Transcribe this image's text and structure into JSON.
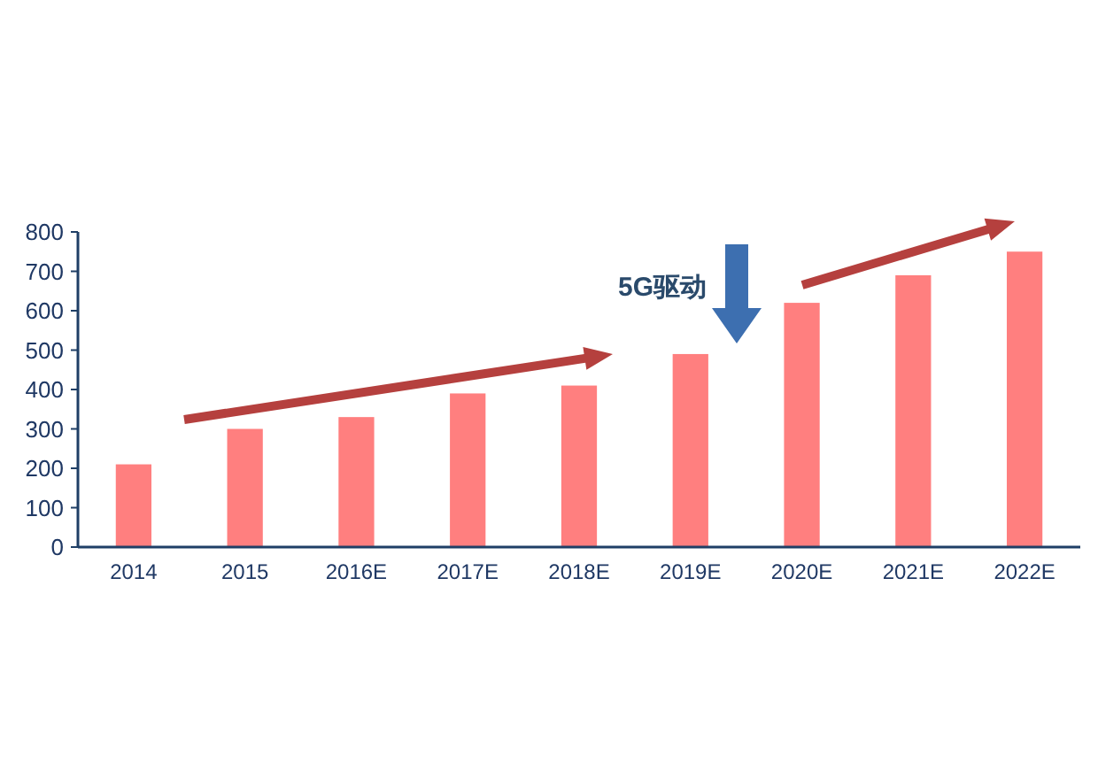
{
  "chart_data": {
    "type": "bar",
    "categories": [
      "2014",
      "2015",
      "2016E",
      "2017E",
      "2018E",
      "2019E",
      "2020E",
      "2021E",
      "2022E"
    ],
    "values": [
      210,
      300,
      330,
      390,
      410,
      490,
      620,
      690,
      750
    ],
    "color": "#ff7f7f",
    "ylim": [
      0,
      800
    ],
    "yticks": [
      0,
      100,
      200,
      300,
      400,
      500,
      600,
      700,
      800
    ],
    "annotations": [
      "5G驱动"
    ]
  }
}
